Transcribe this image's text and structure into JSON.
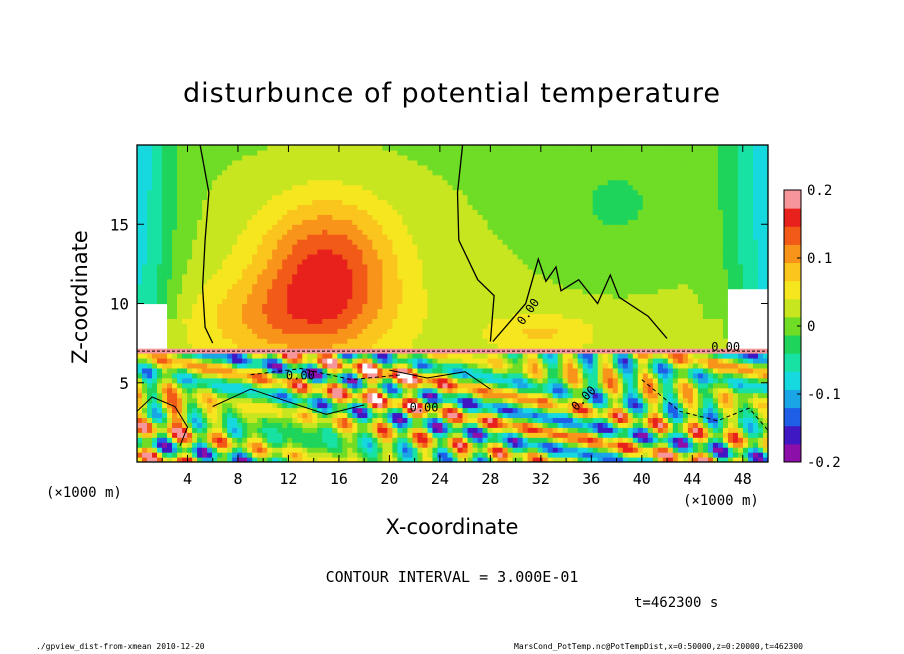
{
  "title": "disturbunce of potential temperature",
  "xlabel": "X-coordinate",
  "ylabel": "Z-coordinate",
  "x_unit": "(×1000 m)",
  "contour_interval": "CONTOUR INTERVAL = 3.000E-01",
  "time_label": "t=462300 s",
  "footer_left": "./gpview_dist-from-xmean  2010-12-20",
  "footer_right": "MarsCond_PotTemp.nc@PotTempDist,x=0:50000,z=0:20000,t=462300",
  "chart_data": {
    "type": "heatmap",
    "title": "disturbunce of potential temperature",
    "xlabel": "X-coordinate",
    "ylabel": "Z-coordinate",
    "x_unit": "(×1000 m)",
    "xlim": [
      0,
      50
    ],
    "ylim": [
      0,
      20
    ],
    "x_ticks": [
      4,
      8,
      12,
      16,
      20,
      24,
      28,
      32,
      36,
      40,
      44,
      48
    ],
    "y_ticks": [
      5,
      10,
      15
    ],
    "colorbar": {
      "range": [
        -0.2,
        0.2
      ],
      "ticks": [
        {
          "value": 0.2,
          "label": "0.2"
        },
        {
          "value": 0.1,
          "label": "0.1"
        },
        {
          "value": 0.0,
          "label": "0"
        },
        {
          "value": -0.1,
          "label": "-0.1"
        },
        {
          "value": -0.2,
          "label": "-0.2"
        }
      ]
    },
    "contour_labels": [
      "0.00",
      "0.00",
      "0.00",
      "0.00",
      "0.00"
    ],
    "contour_interval": 0.3,
    "colors": [
      "#8c0faa",
      "#3f18c4",
      "#1f5fe8",
      "#1aa6e6",
      "#16d9e0",
      "#18e2a3",
      "#1fd45a",
      "#6fdc26",
      "#c8e620",
      "#f5e61f",
      "#fac51d",
      "#f8941a",
      "#f25a18",
      "#e8211c",
      "#f7969a"
    ]
  }
}
